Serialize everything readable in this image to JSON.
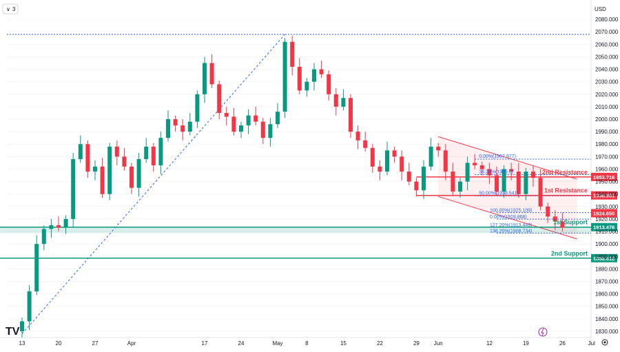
{
  "header": {
    "indicator_count": "3",
    "currency": "USD"
  },
  "chart_data": {
    "type": "candlestick",
    "ylim": [
      1825,
      2090
    ],
    "y_ticks": [
      1830,
      1840,
      1850,
      1860,
      1870,
      1880,
      1890,
      1900,
      1910,
      1920,
      1930,
      1940,
      1950,
      1960,
      1970,
      1980,
      1990,
      2000,
      2010,
      2020,
      2030,
      2040,
      2050,
      2060,
      2070,
      2080
    ],
    "x_ticks": [
      {
        "label": "13",
        "i": 0
      },
      {
        "label": "20",
        "i": 5
      },
      {
        "label": "27",
        "i": 10
      },
      {
        "label": "Apr",
        "i": 15
      },
      {
        "label": "17",
        "i": 25
      },
      {
        "label": "24",
        "i": 30
      },
      {
        "label": "May",
        "i": 35
      },
      {
        "label": "8",
        "i": 39
      },
      {
        "label": "15",
        "i": 44
      },
      {
        "label": "22",
        "i": 49
      },
      {
        "label": "29",
        "i": 54
      },
      {
        "label": "Jun",
        "i": 57
      },
      {
        "label": "12",
        "i": 64
      },
      {
        "label": "19",
        "i": 69
      },
      {
        "label": "26",
        "i": 74
      },
      {
        "label": "Jul",
        "i": 78
      }
    ],
    "n_slots": 80,
    "closes": [
      1838,
      1862,
      1900,
      1912,
      1915,
      1913,
      1920,
      1968,
      1980,
      1958,
      1962,
      1940,
      1978,
      1970,
      1962,
      1945,
      1968,
      1978,
      1963,
      1985,
      2000,
      1995,
      1990,
      1998,
      2020,
      2045,
      2028,
      2005,
      2002,
      1990,
      1995,
      2003,
      1998,
      1985,
      1996,
      2006,
      2062,
      2042,
      2023,
      2030,
      2040,
      2036,
      2020,
      2010,
      2017,
      1990,
      1983,
      1977,
      1962,
      1958,
      1975,
      1970,
      1958,
      1950,
      1943,
      1962,
      1978,
      1975,
      1958,
      1942,
      1950,
      1965,
      1963,
      1960,
      1955,
      1942,
      1960,
      1958,
      1940,
      1958,
      1953,
      1930,
      1922,
      1918,
      1913
    ],
    "levels": [
      {
        "name": "2nd Resistance",
        "value": 1953.716,
        "label": "1953.716",
        "color": "#f23645"
      },
      {
        "name": "1st Resistance",
        "value": 1938.901,
        "label": "1938.901",
        "color": "#f23645"
      },
      {
        "name": "1st Support",
        "value": 1913.476,
        "label": "1913.476",
        "color": "#089981"
      },
      {
        "name": "2nd Support",
        "value": 1888.612,
        "label": "1888.612",
        "color": "#089981"
      }
    ],
    "current_price": {
      "value": 1924.65,
      "label": "1924.650",
      "color": "#f23645"
    },
    "dotted_high": 2068,
    "fib_upper": [
      {
        "label": "0.00%(1967.977)",
        "value": 1967.977
      },
      {
        "label": "38.20%(1955.6)",
        "value": 1955.6
      },
      {
        "label": "50.00%(1938.541)",
        "value": 1938.541
      }
    ],
    "fib_lower": [
      {
        "label": "100.00%(1925.109)",
        "value": 1925.109
      },
      {
        "label": "0.00%(1919.868)",
        "value": 1919.868
      },
      {
        "label": "127.20%(1913.449)",
        "value": 1913.449
      },
      {
        "label": "138.20%(1908.734)",
        "value": 1908.734
      }
    ],
    "colors": {
      "up": "#089981",
      "down": "#f23645",
      "trend": "#2962ff",
      "channel": "#f23645"
    }
  }
}
